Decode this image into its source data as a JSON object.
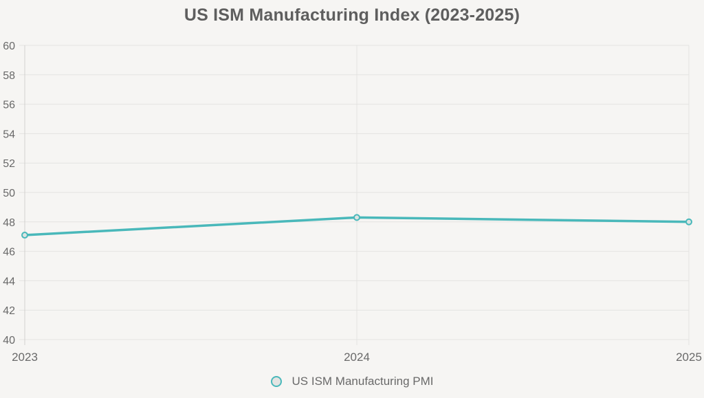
{
  "title": "US ISM Manufacturing Index (2023-2025)",
  "legend": {
    "label": "US ISM Manufacturing PMI"
  },
  "colors": {
    "line": "#49b8ba",
    "point_fill": "#dde4e2",
    "legend_fill": "#e4e4e2",
    "grid": "#e4e3e1",
    "axis": "#d2d1cf",
    "tick_text": "#696969",
    "title_text": "#5e5e5e",
    "background": "#f6f5f3"
  },
  "chart_data": {
    "type": "line",
    "title": "US ISM Manufacturing Index (2023-2025)",
    "categories": [
      "2023",
      "2024",
      "2025"
    ],
    "series": [
      {
        "name": "US ISM Manufacturing PMI",
        "values": [
          47.1,
          48.3,
          48.0
        ]
      }
    ],
    "xlabel": "",
    "ylabel": "",
    "ylim": [
      40,
      60
    ],
    "yticks": [
      40,
      42,
      44,
      46,
      48,
      50,
      52,
      54,
      56,
      58,
      60
    ],
    "grid": true,
    "legend_position": "bottom"
  }
}
